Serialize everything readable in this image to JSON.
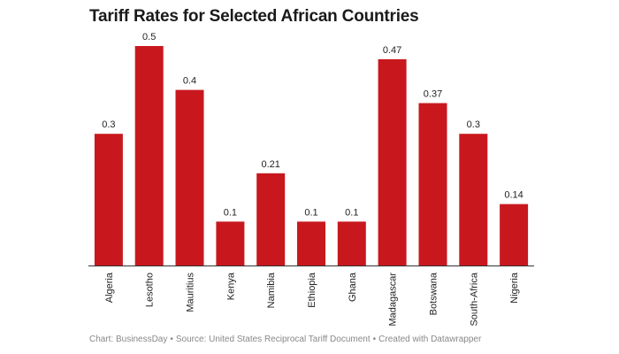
{
  "chart_data": {
    "type": "bar",
    "title": "Tariff Rates for Selected African Countries",
    "categories": [
      "Algeria",
      "Lesotho",
      "Mauritius",
      "Kenya",
      "Namibia",
      "Ethiopia",
      "Ghana",
      "Madagascar",
      "Botswana",
      "South-Africa",
      "Nigeria"
    ],
    "values": [
      0.3,
      0.5,
      0.4,
      0.1,
      0.21,
      0.1,
      0.1,
      0.47,
      0.37,
      0.3,
      0.14
    ],
    "value_labels": [
      "0.3",
      "0.5",
      "0.4",
      "0.1",
      "0.21",
      "0.1",
      "0.1",
      "0.47",
      "0.37",
      "0.3",
      "0.14"
    ],
    "xlabel": "",
    "ylabel": "",
    "ylim": [
      0,
      0.5
    ],
    "grid": false,
    "legend": "none",
    "bar_color": "#c8181e"
  },
  "footer": {
    "chart_credit": "Chart: BusinessDay",
    "separator": "•",
    "source": "Source: United States Reciprocal Tariff Document",
    "created_with": "Created with Datawrapper"
  }
}
